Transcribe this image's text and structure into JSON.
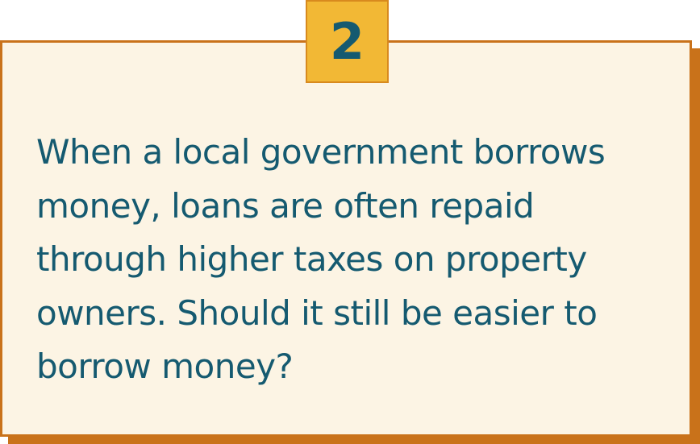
{
  "card": {
    "number": "2",
    "question_lines": [
      "When a local government borrows",
      "money, loans are often repaid",
      "through higher taxes on property",
      "owners. Should it still be easier to",
      "borrow money?"
    ]
  },
  "colors": {
    "card_background": "#fcf4e4",
    "card_border": "#c9721a",
    "badge_background": "#f2b835",
    "text": "#155a70"
  }
}
